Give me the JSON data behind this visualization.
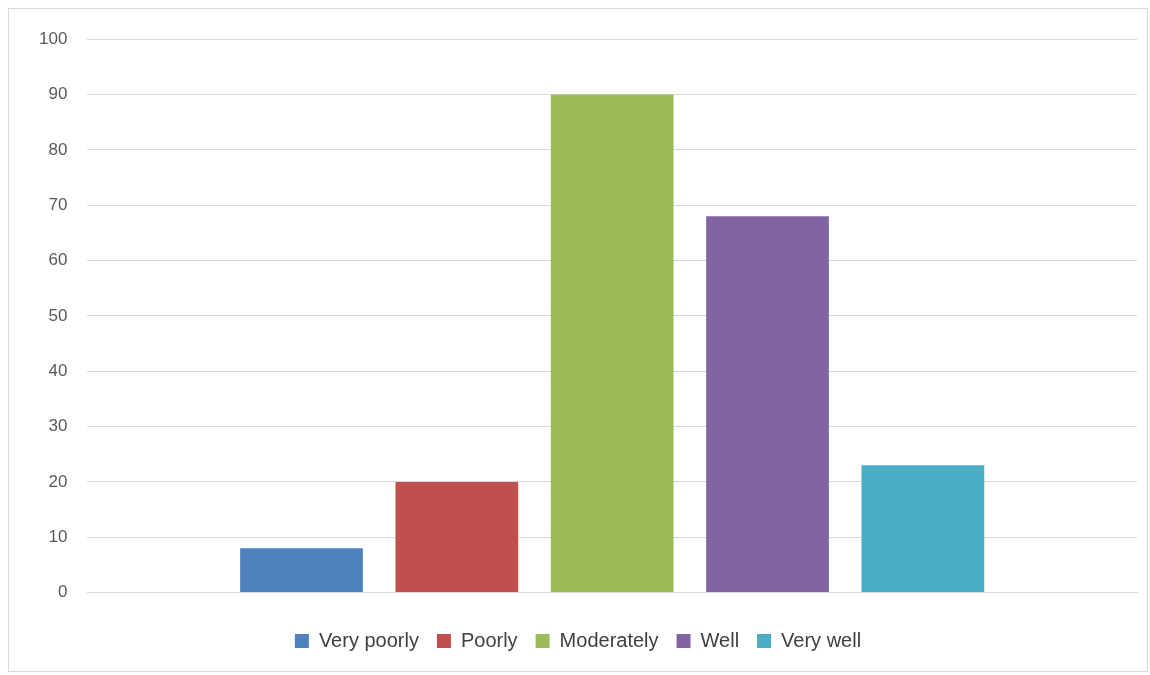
{
  "chart_data": {
    "type": "bar",
    "categories": [
      null
    ],
    "series": [
      {
        "name": "Very poorly",
        "color": "#4f81bd",
        "values": [
          8
        ]
      },
      {
        "name": "Poorly",
        "color": "#c0504d",
        "values": [
          20
        ]
      },
      {
        "name": "Moderately",
        "color": "#9bbb59",
        "values": [
          90
        ]
      },
      {
        "name": "Well",
        "color": "#8064a2",
        "values": [
          68
        ]
      },
      {
        "name": "Very well",
        "color": "#4bacc6",
        "values": [
          23
        ]
      }
    ],
    "ylim": [
      0,
      100
    ],
    "yticks": [
      0,
      10,
      20,
      30,
      40,
      50,
      60,
      70,
      80,
      90,
      100
    ],
    "grid": "y",
    "legend": "bottom"
  }
}
